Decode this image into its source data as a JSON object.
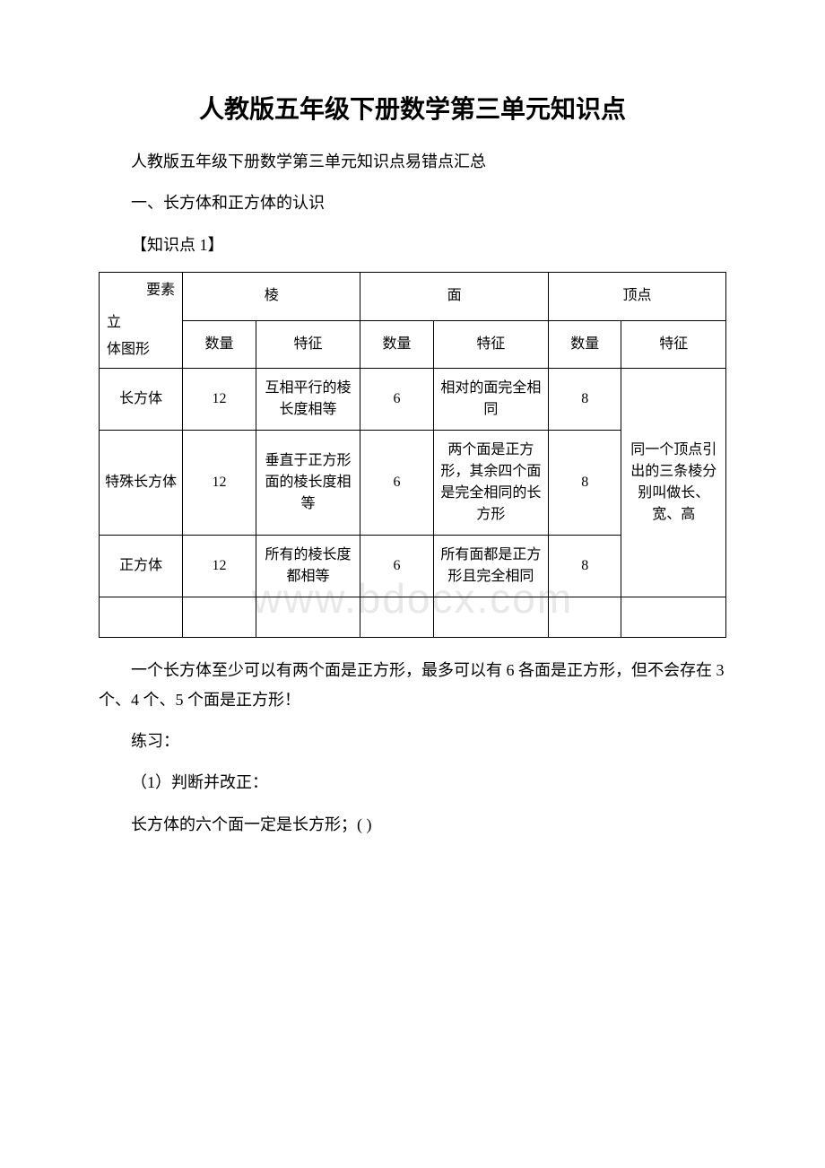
{
  "title": "人教版五年级下册数学第三单元知识点",
  "intro": {
    "line1": "人教版五年级下册数学第三单元知识点易错点汇总",
    "line2": "一、长方体和正方体的认识",
    "line3": "【知识点 1】"
  },
  "table": {
    "header_group": {
      "edge": "棱",
      "face": "面",
      "vertex": "顶点"
    },
    "diagonal": {
      "top": "要素",
      "bottom_1": "立",
      "bottom_2": "体图形"
    },
    "subheader": {
      "count": "数量",
      "feature": "特征"
    },
    "rows": [
      {
        "shape": "长方体",
        "edge_count": "12",
        "edge_feature": "互相平行的棱长度相等",
        "face_count": "6",
        "face_feature": "相对的面完全相同",
        "vertex_count": "8"
      },
      {
        "shape": "特殊长方体",
        "edge_count": "12",
        "edge_feature": "垂直于正方形面的棱长度相等",
        "face_count": "6",
        "face_feature": "两个面是正方形，其余四个面是完全相同的长方形",
        "vertex_count": "8"
      },
      {
        "shape": "正方体",
        "edge_count": "12",
        "edge_feature": "所有的棱长度都相等",
        "face_count": "6",
        "face_feature": "所有面都是正方形且完全相同",
        "vertex_count": "8"
      }
    ],
    "vertex_feature_merged": "同一个顶点引出的三条棱分别叫做长、宽、高"
  },
  "footer": {
    "note": "一个长方体至少可以有两个面是正方形，最多可以有 6 各面是正方形，但不会存在 3 个、4 个、5 个面是正方形！",
    "practice": "练习：",
    "q1": "（1）判断并改正：",
    "q1_text": "长方体的六个面一定是长方形；( )"
  },
  "watermark": "www.bdocx.com"
}
